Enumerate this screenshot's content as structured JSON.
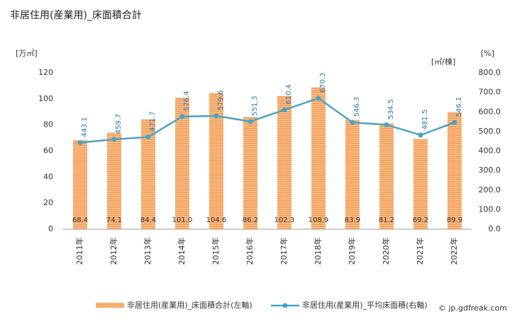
{
  "chart_data": {
    "type": "bar",
    "title": "非居住用(産業用)_床面積合計",
    "y_label": "[万㎡]",
    "y2_label": "[㎡/棟]",
    "y2_label_extra": "[%]",
    "categories": [
      "2011年",
      "2012年",
      "2013年",
      "2014年",
      "2015年",
      "2016年",
      "2017年",
      "2018年",
      "2019年",
      "2020年",
      "2021年",
      "2022年"
    ],
    "series": [
      {
        "name": "非居住用(産業用)_床面積合計(左軸)",
        "type": "bar",
        "color": "#f5a25d",
        "values": [
          68.4,
          74.1,
          84.4,
          101.0,
          104.6,
          86.2,
          102.3,
          108.9,
          83.9,
          81.2,
          69.2,
          89.9
        ],
        "value_labels": [
          "68.4",
          "74.1",
          "84.4",
          "101.0",
          "104.6",
          "86.2",
          "102.3",
          "108.9",
          "83.9",
          "81.2",
          "69.2",
          "89.9"
        ]
      },
      {
        "name": "非居住用(産業用)_平均床面積(右軸)",
        "type": "line",
        "axis": "y2",
        "color": "#4aa3c0",
        "values": [
          443.1,
          459.7,
          471.7,
          576.4,
          579.6,
          551.3,
          610.4,
          670.3,
          546.3,
          534.5,
          481.5,
          546.1
        ]
      }
    ],
    "ylim": [
      0,
      120
    ],
    "yticks": [
      0,
      20,
      40,
      60,
      80,
      100,
      120
    ],
    "y2lim": [
      0,
      800
    ],
    "y2ticks": [
      {
        "value": 0,
        "label": "0.0"
      },
      {
        "value": 100,
        "label": "100.0"
      },
      {
        "value": 200,
        "label": "200.0"
      },
      {
        "value": 300,
        "label": "300.0"
      },
      {
        "value": 400,
        "label": "400.0"
      },
      {
        "value": 500,
        "label": "500.0"
      },
      {
        "value": 600,
        "label": "600.0"
      },
      {
        "value": 700,
        "label": "700.0"
      },
      {
        "value": 800,
        "label": "800.0"
      }
    ],
    "grid": false,
    "credit": "© jp.gdfreak.com"
  }
}
